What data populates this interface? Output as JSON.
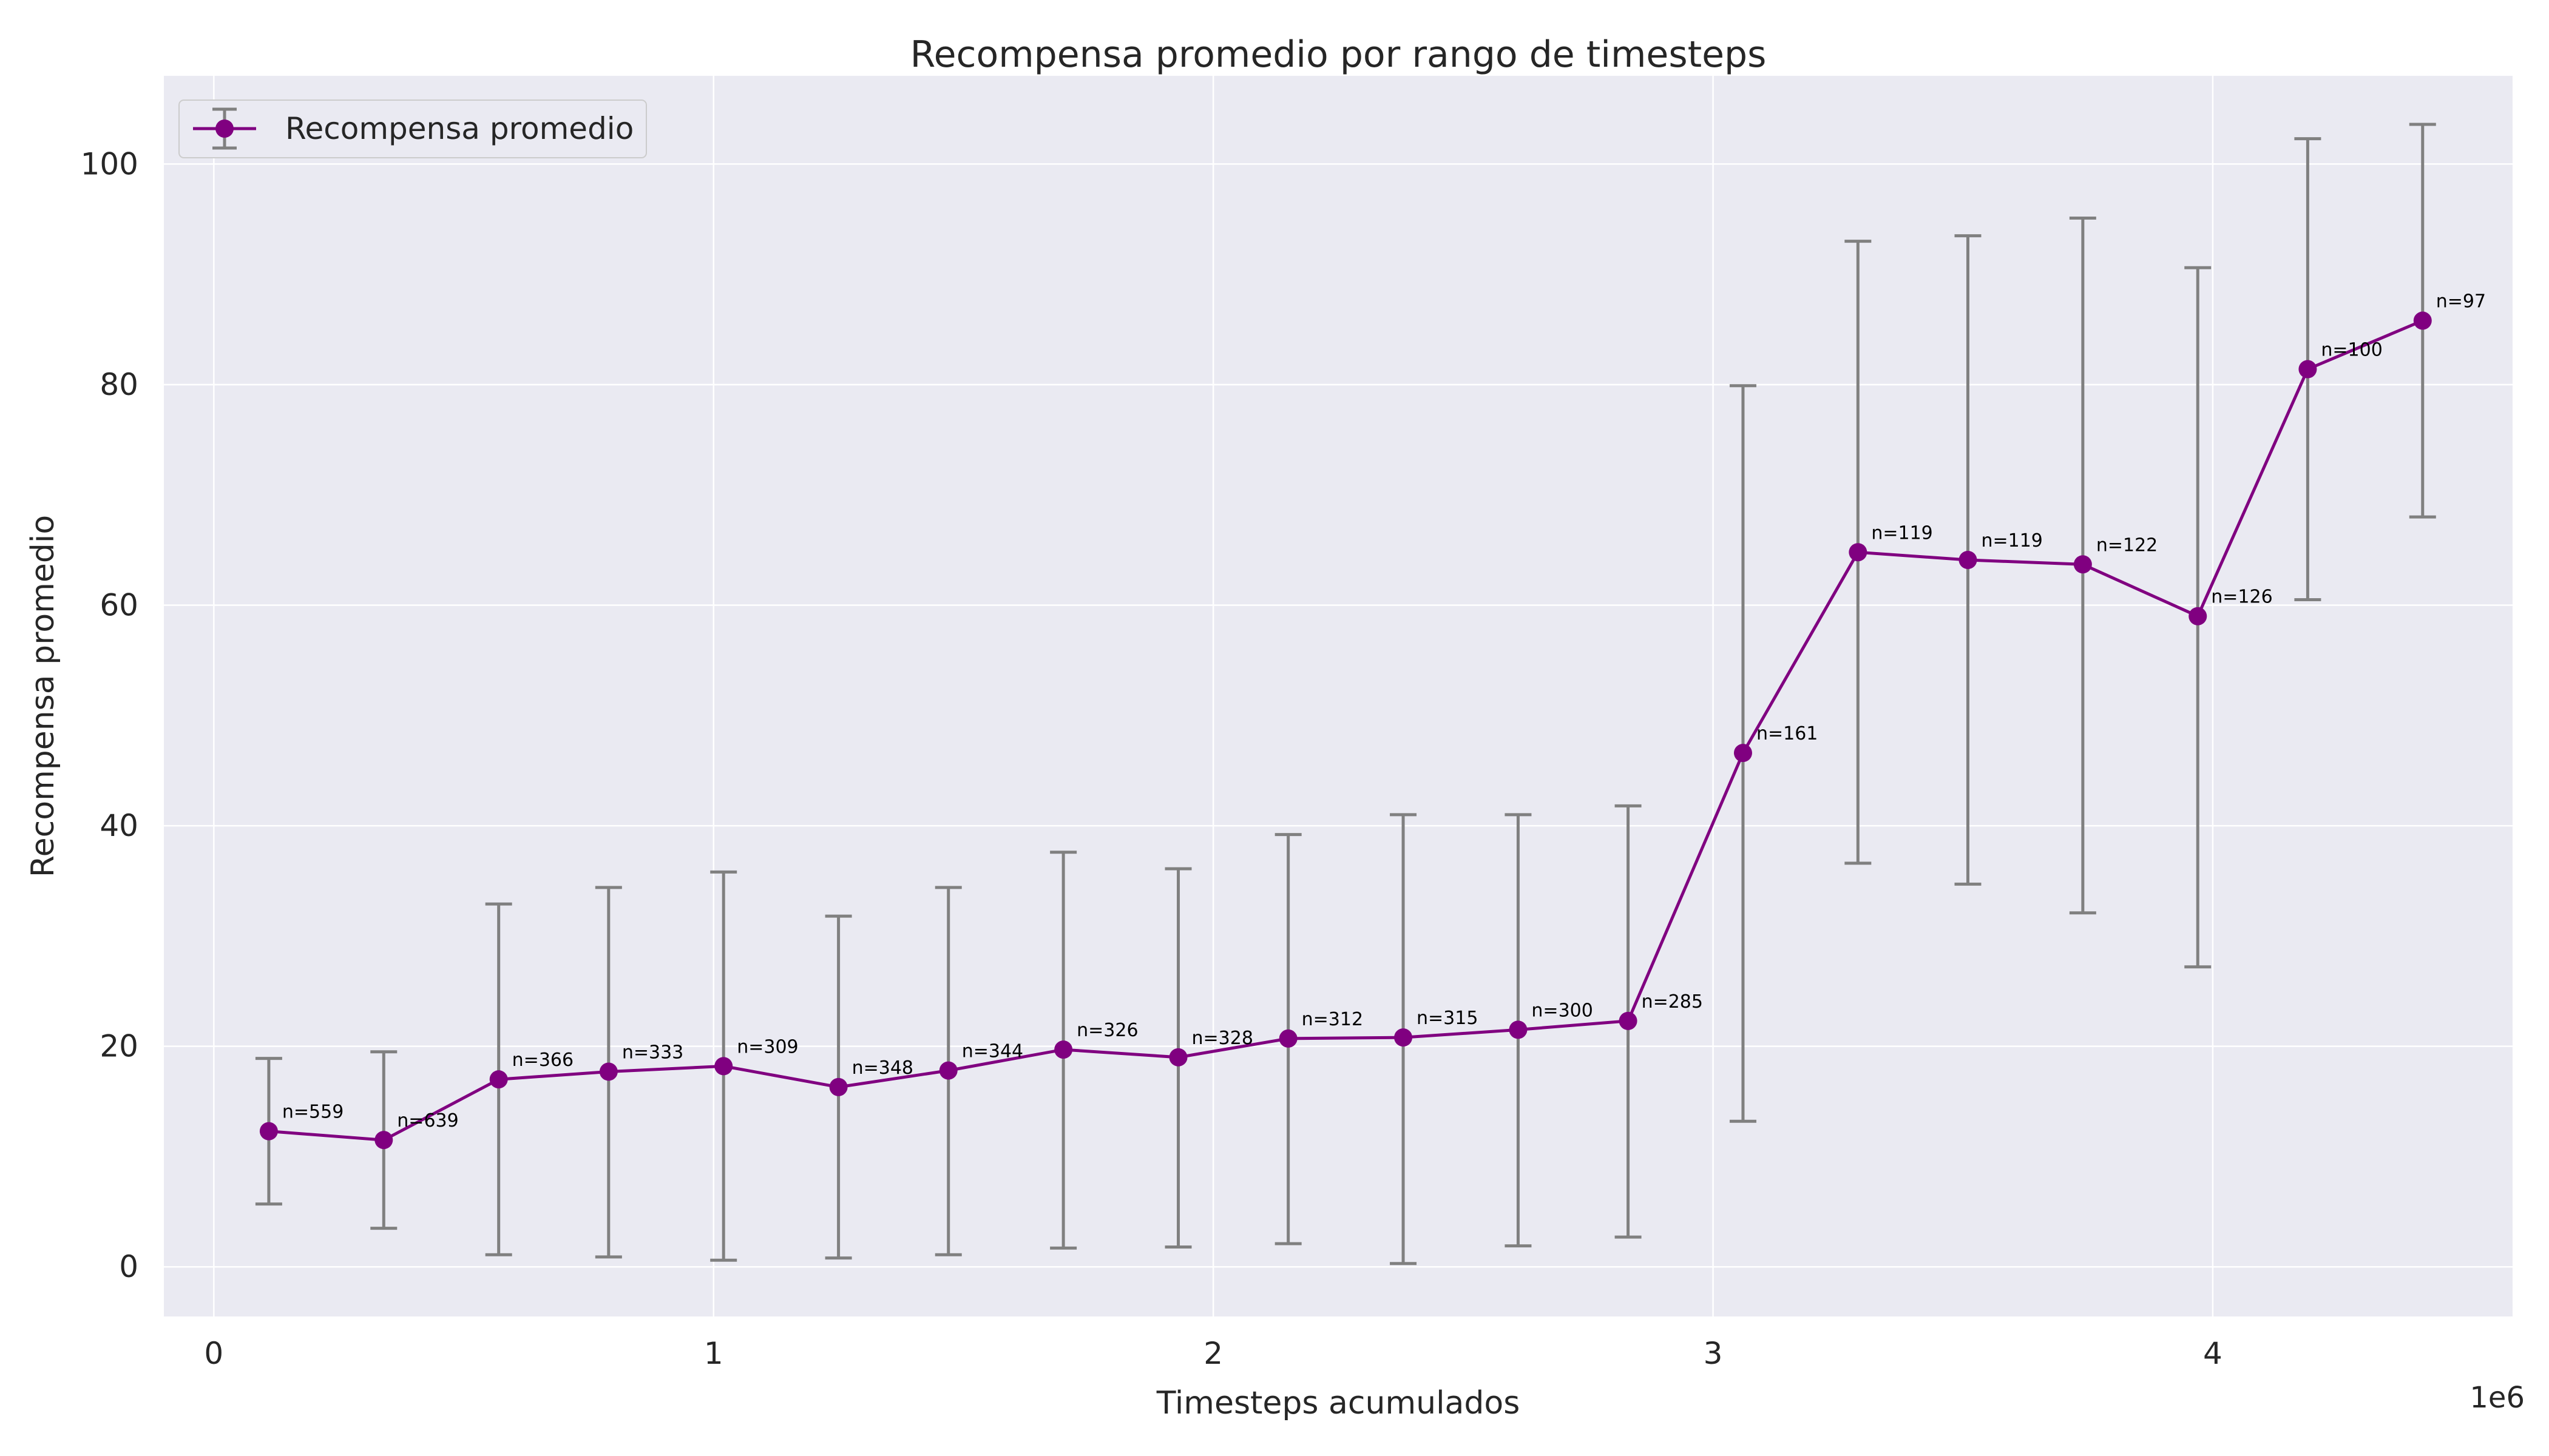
{
  "chart_data": {
    "type": "line",
    "title": "Recompensa promedio por rango de timesteps",
    "xlabel": "Timesteps acumulados",
    "ylabel": "Recompensa promedio",
    "x_offset_label": "1e6",
    "xlim": [
      -0.1,
      4.6
    ],
    "ylim": [
      -4.5,
      108
    ],
    "x_ticks": [
      0,
      1,
      2,
      3,
      4
    ],
    "x_tick_labels": [
      "0",
      "1",
      "2",
      "3",
      "4"
    ],
    "y_ticks": [
      0,
      20,
      40,
      60,
      80,
      100
    ],
    "y_tick_labels": [
      "0",
      "20",
      "40",
      "60",
      "80",
      "100"
    ],
    "grid": true,
    "legend_position": "top-left",
    "colors": {
      "line": "#800080",
      "errorbar": "#808080",
      "plot_background": "#eaeaf2",
      "grid": "#ffffff"
    },
    "series": [
      {
        "name": "Recompensa promedio",
        "points": [
          {
            "x": 0.11,
            "y": 12.3,
            "lower": 5.7,
            "upper": 18.9,
            "label": "n=559"
          },
          {
            "x": 0.34,
            "y": 11.5,
            "lower": 3.5,
            "upper": 19.5,
            "label": "n=639"
          },
          {
            "x": 0.57,
            "y": 17.0,
            "lower": 1.1,
            "upper": 32.9,
            "label": "n=366"
          },
          {
            "x": 0.79,
            "y": 17.7,
            "lower": 0.9,
            "upper": 34.4,
            "label": "n=333"
          },
          {
            "x": 1.02,
            "y": 18.2,
            "lower": 0.6,
            "upper": 35.8,
            "label": "n=309"
          },
          {
            "x": 1.25,
            "y": 16.3,
            "lower": 0.8,
            "upper": 31.8,
            "label": "n=348"
          },
          {
            "x": 1.47,
            "y": 17.8,
            "lower": 1.1,
            "upper": 34.4,
            "label": "n=344"
          },
          {
            "x": 1.7,
            "y": 19.7,
            "lower": 1.7,
            "upper": 37.6,
            "label": "n=326"
          },
          {
            "x": 1.93,
            "y": 19.0,
            "lower": 1.8,
            "upper": 36.1,
            "label": "n=328"
          },
          {
            "x": 2.15,
            "y": 20.7,
            "lower": 2.1,
            "upper": 39.2,
            "label": "n=312"
          },
          {
            "x": 2.38,
            "y": 20.8,
            "lower": 0.3,
            "upper": 41.0,
            "label": "n=315"
          },
          {
            "x": 2.61,
            "y": 21.5,
            "lower": 1.9,
            "upper": 41.0,
            "label": "n=300"
          },
          {
            "x": 2.83,
            "y": 22.3,
            "lower": 2.7,
            "upper": 41.8,
            "label": "n=285"
          },
          {
            "x": 3.06,
            "y": 46.6,
            "lower": 13.2,
            "upper": 79.9,
            "label": "n=161"
          },
          {
            "x": 3.29,
            "y": 64.8,
            "lower": 36.6,
            "upper": 93.0,
            "label": "n=119"
          },
          {
            "x": 3.51,
            "y": 64.1,
            "lower": 34.7,
            "upper": 93.5,
            "label": "n=119"
          },
          {
            "x": 3.74,
            "y": 63.7,
            "lower": 32.1,
            "upper": 95.1,
            "label": "n=122"
          },
          {
            "x": 3.97,
            "y": 59.0,
            "lower": 27.2,
            "upper": 90.6,
            "label": "n=126"
          },
          {
            "x": 4.19,
            "y": 81.4,
            "lower": 60.5,
            "upper": 102.3,
            "label": "n=100"
          },
          {
            "x": 4.42,
            "y": 85.8,
            "lower": 68.0,
            "upper": 103.6,
            "label": "n=97"
          }
        ]
      }
    ]
  }
}
